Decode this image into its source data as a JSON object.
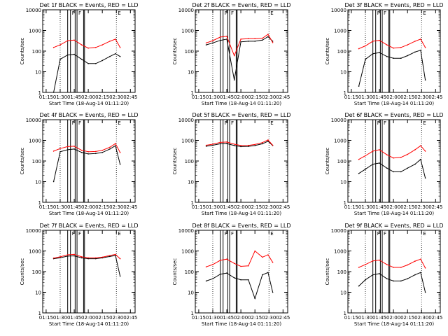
{
  "colors": {
    "events": "#000000",
    "lld": "#ff0000",
    "axis": "#000000"
  },
  "flare_markers": [
    "F",
    "F",
    "E"
  ],
  "xlabel": "Start Time (18-Aug-14 01:11:20)",
  "ylabel": "Counts/sec",
  "yticks": [
    "1",
    "10",
    "100",
    "1000",
    "10000"
  ],
  "xticks": [
    "01:15",
    "01:30",
    "01:45",
    "02:00",
    "02:15",
    "02:30",
    "02:45"
  ],
  "chart_data": [
    {
      "type": "line",
      "title": "Det 1f BLACK = Events, RED = LLD",
      "xlim": [
        "01:11:20",
        "02:50"
      ],
      "ylim": [
        1,
        10000
      ],
      "yscale": "log",
      "x": [
        "01:23",
        "01:30",
        "01:38",
        "01:45",
        "01:53",
        "02:00",
        "02:08",
        "02:15",
        "02:23",
        "02:29",
        "02:34"
      ],
      "series": [
        {
          "name": "BLACK = Events",
          "values": [
            1,
            40,
            65,
            70,
            40,
            25,
            25,
            35,
            55,
            75,
            55
          ]
        },
        {
          "name": "RED = LLD",
          "values": [
            150,
            200,
            320,
            340,
            200,
            140,
            150,
            200,
            300,
            380,
            150
          ]
        }
      ]
    },
    {
      "type": "line",
      "title": "Det 2f BLACK = Events, RED = LLD",
      "xlim": [
        "01:11:20",
        "02:50"
      ],
      "ylim": [
        1,
        10000
      ],
      "yscale": "log",
      "x": [
        "01:23",
        "01:30",
        "01:38",
        "01:45",
        "01:53",
        "02:00",
        "02:08",
        "02:15",
        "02:23",
        "02:29",
        "02:34"
      ],
      "series": [
        {
          "name": "BLACK = Events",
          "values": [
            200,
            250,
            330,
            380,
            4,
            280,
            300,
            300,
            340,
            500,
            300
          ]
        },
        {
          "name": "RED = LLD",
          "values": [
            250,
            320,
            480,
            520,
            60,
            380,
            400,
            400,
            420,
            650,
            260
          ]
        }
      ]
    },
    {
      "type": "line",
      "title": "Det 3f BLACK = Events, RED = LLD",
      "xlim": [
        "01:11:20",
        "02:50"
      ],
      "ylim": [
        1,
        10000
      ],
      "yscale": "log",
      "x": [
        "01:23",
        "01:30",
        "01:38",
        "01:45",
        "01:53",
        "02:00",
        "02:08",
        "02:15",
        "02:23",
        "02:29",
        "02:34"
      ],
      "series": [
        {
          "name": "BLACK = Events",
          "values": [
            2,
            40,
            75,
            85,
            55,
            45,
            45,
            60,
            90,
            110,
            4
          ]
        },
        {
          "name": "RED = LLD",
          "values": [
            130,
            180,
            300,
            330,
            200,
            140,
            150,
            200,
            300,
            380,
            150
          ]
        }
      ]
    },
    {
      "type": "line",
      "title": "Det 4f BLACK = Events, RED = LLD",
      "xlim": [
        "01:11:20",
        "02:50"
      ],
      "ylim": [
        1,
        10000
      ],
      "yscale": "log",
      "x": [
        "01:23",
        "01:30",
        "01:38",
        "01:45",
        "01:53",
        "02:00",
        "02:08",
        "02:15",
        "02:23",
        "02:29",
        "02:34"
      ],
      "series": [
        {
          "name": "BLACK = Events",
          "values": [
            10,
            280,
            350,
            380,
            260,
            220,
            230,
            260,
            380,
            550,
            70
          ]
        },
        {
          "name": "RED = LLD",
          "values": [
            300,
            400,
            500,
            520,
            330,
            280,
            290,
            330,
            460,
            700,
            260
          ]
        }
      ]
    },
    {
      "type": "line",
      "title": "Det 5f BLACK = Events, RED = LLD",
      "xlim": [
        "01:11:20",
        "02:50"
      ],
      "ylim": [
        1,
        10000
      ],
      "yscale": "log",
      "x": [
        "01:23",
        "01:30",
        "01:38",
        "01:45",
        "01:53",
        "02:00",
        "02:08",
        "02:15",
        "02:23",
        "02:29",
        "02:34"
      ],
      "series": [
        {
          "name": "BLACK = Events",
          "values": [
            520,
            580,
            680,
            700,
            560,
            500,
            510,
            560,
            680,
            900,
            560
          ]
        },
        {
          "name": "RED = LLD",
          "values": [
            580,
            650,
            800,
            830,
            650,
            560,
            570,
            630,
            780,
            1050,
            580
          ]
        }
      ]
    },
    {
      "type": "line",
      "title": "Det 6f BLACK = Events, RED = LLD",
      "xlim": [
        "01:11:20",
        "02:50"
      ],
      "ylim": [
        1,
        10000
      ],
      "yscale": "log",
      "x": [
        "01:23",
        "01:30",
        "01:38",
        "01:45",
        "01:53",
        "02:00",
        "02:08",
        "02:15",
        "02:23",
        "02:29",
        "02:34"
      ],
      "series": [
        {
          "name": "BLACK = Events",
          "values": [
            25,
            40,
            70,
            80,
            45,
            30,
            30,
            45,
            70,
            120,
            15
          ]
        },
        {
          "name": "RED = LLD",
          "values": [
            120,
            180,
            300,
            350,
            200,
            140,
            150,
            210,
            350,
            550,
            300
          ]
        }
      ]
    },
    {
      "type": "line",
      "title": "Det 7f BLACK = Events, RED = LLD",
      "xlim": [
        "01:11:20",
        "02:50"
      ],
      "ylim": [
        1,
        10000
      ],
      "yscale": "log",
      "x": [
        "01:23",
        "01:30",
        "01:38",
        "01:45",
        "01:53",
        "02:00",
        "02:08",
        "02:15",
        "02:23",
        "02:29",
        "02:34"
      ],
      "series": [
        {
          "name": "BLACK = Events",
          "values": [
            420,
            470,
            560,
            580,
            460,
            420,
            420,
            460,
            540,
            600,
            60
          ]
        },
        {
          "name": "RED = LLD",
          "values": [
            450,
            520,
            650,
            680,
            520,
            460,
            460,
            500,
            600,
            680,
            420
          ]
        }
      ]
    },
    {
      "type": "line",
      "title": "Det 8f BLACK = Events, RED = LLD",
      "xlim": [
        "01:11:20",
        "02:50"
      ],
      "ylim": [
        1,
        10000
      ],
      "yscale": "log",
      "x": [
        "01:23",
        "01:30",
        "01:38",
        "01:45",
        "01:53",
        "02:00",
        "02:08",
        "02:15",
        "02:23",
        "02:29",
        "02:34"
      ],
      "series": [
        {
          "name": "BLACK = Events",
          "values": [
            35,
            45,
            75,
            85,
            50,
            40,
            40,
            5,
            70,
            90,
            10
          ]
        },
        {
          "name": "RED = LLD",
          "values": [
            170,
            220,
            350,
            400,
            250,
            180,
            190,
            1000,
            500,
            650,
            280
          ]
        }
      ]
    },
    {
      "type": "line",
      "title": "Det 9f BLACK = Events, RED = LLD",
      "xlim": [
        "01:11:20",
        "02:50"
      ],
      "ylim": [
        1,
        10000
      ],
      "yscale": "log",
      "x": [
        "01:23",
        "01:30",
        "01:38",
        "01:45",
        "01:53",
        "02:00",
        "02:08",
        "02:15",
        "02:23",
        "02:29",
        "02:34"
      ],
      "series": [
        {
          "name": "BLACK = Events",
          "values": [
            20,
            40,
            70,
            80,
            45,
            35,
            35,
            45,
            70,
            90,
            10
          ]
        },
        {
          "name": "RED = LLD",
          "values": [
            160,
            220,
            330,
            360,
            220,
            160,
            160,
            210,
            320,
            400,
            150
          ]
        }
      ]
    }
  ]
}
